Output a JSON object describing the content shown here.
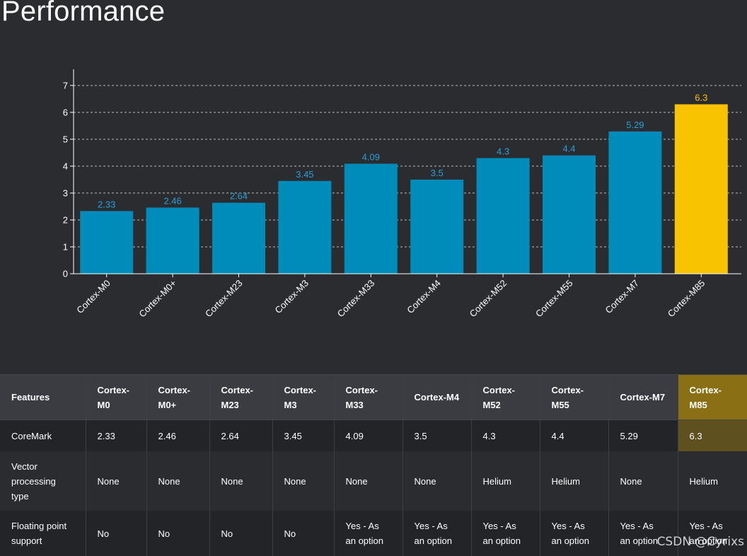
{
  "page_title": "Performance",
  "colors": {
    "background": "#2b2c30",
    "bar": "#008cba",
    "bar_highlight": "#f8c300",
    "data_label": "#2a9fd6",
    "data_label_highlight": "#f8c300",
    "axis": "#ffffff",
    "grid": "#bdbdbd"
  },
  "chart_data": {
    "type": "bar",
    "title": "",
    "xlabel": "",
    "ylabel": "",
    "categories": [
      "Cortex-M0",
      "Cortex-M0+",
      "Cortex-M23",
      "Cortex-M3",
      "Cortex-M33",
      "Cortex-M4",
      "Cortex-M52",
      "Cortex-M55",
      "Cortex-M7",
      "Cortex-M85"
    ],
    "values": [
      2.33,
      2.46,
      2.64,
      3.45,
      4.09,
      3.5,
      4.3,
      4.4,
      5.29,
      6.3
    ],
    "data_labels": [
      "2.33",
      "2.46",
      "2.64",
      "3.45",
      "4.09",
      "3.5",
      "4.3",
      "4.4",
      "5.29",
      "6.3"
    ],
    "highlight_index": 9,
    "ylim": [
      0,
      7.6
    ],
    "yticks": [
      0,
      1,
      2,
      3,
      4,
      5,
      6,
      7
    ],
    "grid": "dashed horizontal",
    "legend": "none"
  },
  "table": {
    "header": [
      "Features",
      "Cortex-M0",
      "Cortex-M0+",
      "Cortex-M23",
      "Cortex-M3",
      "Cortex-M33",
      "Cortex-M4",
      "Cortex-M52",
      "Cortex-M55",
      "Cortex-M7",
      "Cortex-M85"
    ],
    "rows": [
      [
        "CoreMark",
        "2.33",
        "2.46",
        "2.64",
        "3.45",
        "4.09",
        "3.5",
        "4.3",
        "4.4",
        "5.29",
        "6.3"
      ],
      [
        "Vector processing type",
        "None",
        "None",
        "None",
        "None",
        "None",
        "None",
        "Helium",
        "Helium",
        "None",
        "Helium"
      ],
      [
        "Floating point support",
        "No",
        "No",
        "No",
        "No",
        "Yes - As an option",
        "Yes - As an option",
        "Yes - As an option",
        "Yes - As an option",
        "Yes - As an option",
        "Yes - As an option"
      ]
    ]
  },
  "watermark": "CSDN @Cyrixs"
}
